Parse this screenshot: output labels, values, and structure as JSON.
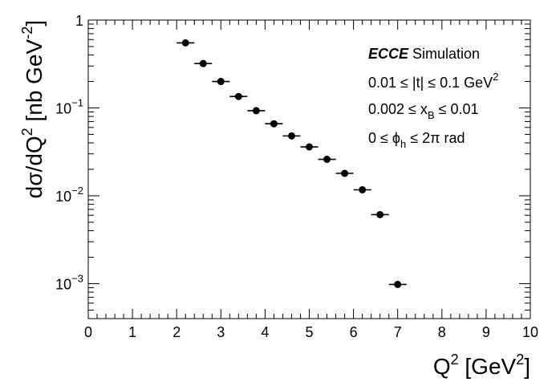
{
  "chart_data": {
    "type": "scatter",
    "y_scale": "log",
    "xlim": [
      0,
      10
    ],
    "ylim": [
      0.0004,
      1
    ],
    "x_ticks": [
      "0",
      "1",
      "2",
      "3",
      "4",
      "5",
      "6",
      "7",
      "8",
      "9",
      "10"
    ],
    "y_ticks": [
      {
        "base": "10",
        "exp": "−3",
        "value": 0.001
      },
      {
        "base": "10",
        "exp": "−2",
        "value": 0.01
      },
      {
        "base": "10",
        "exp": "−1",
        "value": 0.1
      },
      {
        "base": "1",
        "exp": "",
        "value": 1
      }
    ],
    "xlabel": {
      "main": "Q",
      "sup": "2",
      "rest": " [GeV",
      "sup2": "2",
      "end": "]"
    },
    "ylabel": {
      "main": "dσ/dQ",
      "sup": "2",
      "rest": " [nb GeV",
      "sup2": "-2",
      "end": "]"
    },
    "annotations": {
      "experiment": "ECCE",
      "simulation": " Simulation",
      "t_range": {
        "pre": "0.01 ≤ |t| ≤ 0.1 GeV",
        "sup": "2"
      },
      "xb_range": {
        "pre": "0.002 ≤ x",
        "sub": "B",
        "post": " ≤ 0.01"
      },
      "phi_range": {
        "pre": "0 ≤ ϕ",
        "sub": "h",
        "post": " ≤ 2π rad"
      }
    },
    "points": [
      {
        "x": 2.2,
        "xerr": 0.2,
        "y": 0.55
      },
      {
        "x": 2.6,
        "xerr": 0.2,
        "y": 0.32
      },
      {
        "x": 3.0,
        "xerr": 0.2,
        "y": 0.2
      },
      {
        "x": 3.4,
        "xerr": 0.2,
        "y": 0.135
      },
      {
        "x": 3.8,
        "xerr": 0.2,
        "y": 0.093
      },
      {
        "x": 4.2,
        "xerr": 0.2,
        "y": 0.066
      },
      {
        "x": 4.6,
        "xerr": 0.2,
        "y": 0.048
      },
      {
        "x": 5.0,
        "xerr": 0.2,
        "y": 0.036
      },
      {
        "x": 5.4,
        "xerr": 0.2,
        "y": 0.026
      },
      {
        "x": 5.8,
        "xerr": 0.2,
        "y": 0.018
      },
      {
        "x": 6.2,
        "xerr": 0.2,
        "y": 0.0117
      },
      {
        "x": 6.6,
        "xerr": 0.2,
        "y": 0.0061
      },
      {
        "x": 7.0,
        "xerr": 0.2,
        "y": 0.00098
      }
    ],
    "marker_color": "#000000",
    "grid": false,
    "legend": "none"
  }
}
